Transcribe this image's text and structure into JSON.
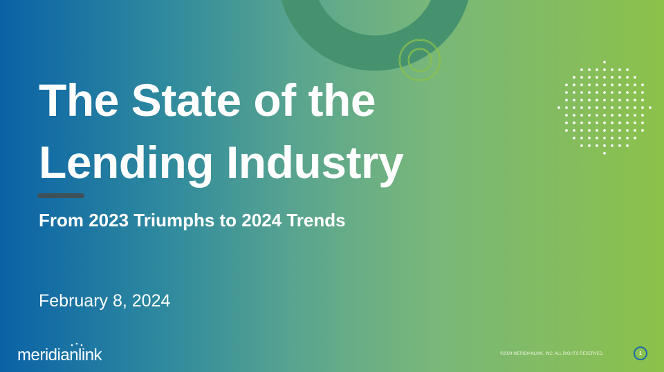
{
  "slide": {
    "title_line1": "The State of the",
    "title_line2": "Lending Industry",
    "subtitle": "From 2023 Triumphs to 2024 Trends",
    "date": "February 8, 2024",
    "logo_text": "meridianlink",
    "copyright": "©2024 MERIDIANLINK, INC. ALL RIGHTS RESERVED.",
    "page_number": "1"
  },
  "colors": {
    "gradient_start": "#0a62a6",
    "gradient_end": "#8cc14a",
    "ring": "#46926f",
    "page_circle": "#1a6aa6"
  }
}
